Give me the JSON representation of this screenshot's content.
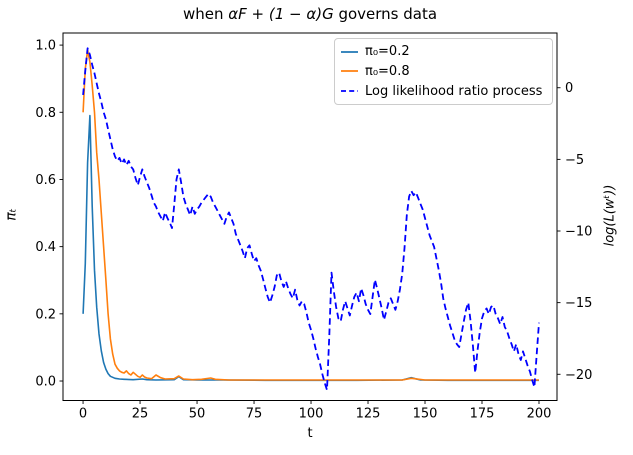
{
  "figure": {
    "title_parts": {
      "prefix": "when ",
      "math": "αF + (1 − α)G",
      "suffix": " governs data"
    }
  },
  "chart_data": {
    "type": "line",
    "title": "when αF + (1 − α)G governs data",
    "xlabel": "t",
    "ylabels": {
      "left": "πₜ",
      "right": "log(L(wᵗ))"
    },
    "xlim": [
      -8.8,
      207.9
    ],
    "ylim_left": [
      -0.058,
      1.036
    ],
    "ylim_right": [
      -21.83,
      3.82
    ],
    "grid": false,
    "legend_position": "upper right",
    "x_ticks": {
      "values": [
        0,
        25,
        50,
        75,
        100,
        125,
        150,
        175,
        200
      ],
      "labels": [
        "0",
        "25",
        "50",
        "75",
        "100",
        "125",
        "150",
        "175",
        "200"
      ]
    },
    "y_ticks_left": {
      "values": [
        0.0,
        0.2,
        0.4,
        0.6,
        0.8,
        1.0
      ],
      "labels": [
        "0.0",
        "0.2",
        "0.4",
        "0.6",
        "0.8",
        "1.0"
      ]
    },
    "y_ticks_right": {
      "values": [
        0,
        -5,
        -10,
        -15,
        -20
      ],
      "labels": [
        "0",
        "−5",
        "−10",
        "−15",
        "−20"
      ]
    },
    "series": [
      {
        "name": "π₀=0.2",
        "color": "#1f77b4",
        "line_style": "solid",
        "axis": "left",
        "points": [
          [
            0,
            0.2
          ],
          [
            1,
            0.35
          ],
          [
            2,
            0.65
          ],
          [
            3,
            0.79
          ],
          [
            4,
            0.52
          ],
          [
            5,
            0.33
          ],
          [
            6,
            0.22
          ],
          [
            7,
            0.14
          ],
          [
            8,
            0.09
          ],
          [
            9,
            0.055
          ],
          [
            10,
            0.035
          ],
          [
            11,
            0.022
          ],
          [
            12,
            0.014
          ],
          [
            14,
            0.008
          ],
          [
            16,
            0.006
          ],
          [
            18,
            0.005
          ],
          [
            22,
            0.004
          ],
          [
            26,
            0.006
          ],
          [
            28,
            0.004
          ],
          [
            32,
            0.003
          ],
          [
            40,
            0.004
          ],
          [
            42,
            0.013
          ],
          [
            44,
            0.004
          ],
          [
            50,
            0.003
          ],
          [
            60,
            0.003
          ],
          [
            80,
            0.002
          ],
          [
            100,
            0.002
          ],
          [
            120,
            0.002
          ],
          [
            140,
            0.003
          ],
          [
            144,
            0.01
          ],
          [
            148,
            0.003
          ],
          [
            160,
            0.002
          ],
          [
            180,
            0.002
          ],
          [
            200,
            0.002
          ]
        ]
      },
      {
        "name": "π₀=0.8",
        "color": "#ff7f0e",
        "line_style": "solid",
        "axis": "left",
        "points": [
          [
            0,
            0.8
          ],
          [
            1,
            0.93
          ],
          [
            2,
            0.985
          ],
          [
            3,
            0.95
          ],
          [
            4,
            0.88
          ],
          [
            5,
            0.8
          ],
          [
            6,
            0.68
          ],
          [
            7,
            0.6
          ],
          [
            8,
            0.5
          ],
          [
            9,
            0.4
          ],
          [
            10,
            0.3
          ],
          [
            11,
            0.2
          ],
          [
            12,
            0.125
          ],
          [
            13,
            0.08
          ],
          [
            14,
            0.05
          ],
          [
            15,
            0.038
          ],
          [
            16,
            0.03
          ],
          [
            17,
            0.026
          ],
          [
            18,
            0.024
          ],
          [
            19,
            0.03
          ],
          [
            20,
            0.022
          ],
          [
            21,
            0.018
          ],
          [
            22,
            0.026
          ],
          [
            23,
            0.02
          ],
          [
            24,
            0.014
          ],
          [
            25,
            0.011
          ],
          [
            26,
            0.018
          ],
          [
            27,
            0.012
          ],
          [
            28,
            0.009
          ],
          [
            30,
            0.007
          ],
          [
            32,
            0.018
          ],
          [
            34,
            0.01
          ],
          [
            36,
            0.006
          ],
          [
            40,
            0.007
          ],
          [
            42,
            0.015
          ],
          [
            44,
            0.006
          ],
          [
            48,
            0.004
          ],
          [
            52,
            0.005
          ],
          [
            56,
            0.009
          ],
          [
            58,
            0.005
          ],
          [
            64,
            0.003
          ],
          [
            80,
            0.003
          ],
          [
            100,
            0.003
          ],
          [
            120,
            0.003
          ],
          [
            140,
            0.003
          ],
          [
            144,
            0.008
          ],
          [
            150,
            0.003
          ],
          [
            170,
            0.003
          ],
          [
            200,
            0.003
          ]
        ]
      },
      {
        "name": "Log likelihood ratio process",
        "color": "#0000ff",
        "line_style": "dashed",
        "axis": "right",
        "x_start": 0,
        "x_step": 1,
        "values": [
          -0.5,
          1.2,
          2.75,
          2.3,
          1.6,
          1.0,
          0.3,
          -0.4,
          -1.0,
          -1.7,
          -2.2,
          -2.9,
          -3.6,
          -4.3,
          -4.8,
          -5.1,
          -4.9,
          -5.3,
          -5.0,
          -5.4,
          -5.1,
          -5.5,
          -5.7,
          -6.3,
          -6.8,
          -6.2,
          -5.7,
          -6.2,
          -6.6,
          -7.0,
          -7.5,
          -8.0,
          -8.3,
          -8.7,
          -9.0,
          -9.3,
          -8.7,
          -9.1,
          -9.4,
          -9.8,
          -8.2,
          -6.4,
          -5.7,
          -6.6,
          -7.6,
          -8.1,
          -8.5,
          -8.9,
          -8.3,
          -8.8,
          -8.5,
          -8.3,
          -8.0,
          -7.8,
          -7.6,
          -7.4,
          -7.6,
          -8.0,
          -8.3,
          -8.6,
          -8.9,
          -9.2,
          -9.5,
          -9.0,
          -8.7,
          -9.1,
          -9.5,
          -10.2,
          -10.6,
          -11.0,
          -11.4,
          -11.9,
          -11.2,
          -11.0,
          -11.6,
          -12.1,
          -11.9,
          -12.4,
          -12.8,
          -13.4,
          -14.0,
          -14.6,
          -15.0,
          -14.5,
          -13.9,
          -13.1,
          -12.9,
          -13.5,
          -13.9,
          -13.5,
          -14.0,
          -14.4,
          -14.7,
          -14.1,
          -14.8,
          -15.2,
          -14.9,
          -15.1,
          -15.7,
          -16.4,
          -16.9,
          -17.5,
          -18.2,
          -18.8,
          -19.3,
          -20.0,
          -20.6,
          -21.1,
          -17.3,
          -12.9,
          -14.2,
          -15.3,
          -16.1,
          -16.3,
          -15.5,
          -14.9,
          -15.4,
          -15.9,
          -15.2,
          -14.6,
          -14.3,
          -14.9,
          -14.0,
          -14.5,
          -15.1,
          -15.5,
          -15.8,
          -14.6,
          -13.4,
          -14.0,
          -14.7,
          -15.4,
          -16.2,
          -15.6,
          -15.0,
          -14.7,
          -15.1,
          -15.5,
          -14.9,
          -14.1,
          -13.0,
          -11.2,
          -8.9,
          -7.6,
          -7.2,
          -7.5,
          -7.3,
          -7.7,
          -8.1,
          -8.5,
          -9.1,
          -9.7,
          -10.3,
          -10.7,
          -11.1,
          -11.9,
          -12.7,
          -13.6,
          -14.7,
          -15.4,
          -16.0,
          -16.6,
          -17.1,
          -17.6,
          -17.9,
          -18.1,
          -17.2,
          -16.3,
          -15.5,
          -15.0,
          -16.3,
          -18.0,
          -19.9,
          -18.4,
          -17.1,
          -16.1,
          -15.6,
          -15.4,
          -15.8,
          -15.3,
          -15.2,
          -15.8,
          -16.1,
          -16.5,
          -16.0,
          -16.7,
          -17.0,
          -17.5,
          -17.9,
          -18.4,
          -17.9,
          -18.6,
          -19.0,
          -18.4,
          -18.9,
          -19.4,
          -19.8,
          -20.4,
          -20.9,
          -18.6,
          -16.4
        ]
      }
    ]
  }
}
